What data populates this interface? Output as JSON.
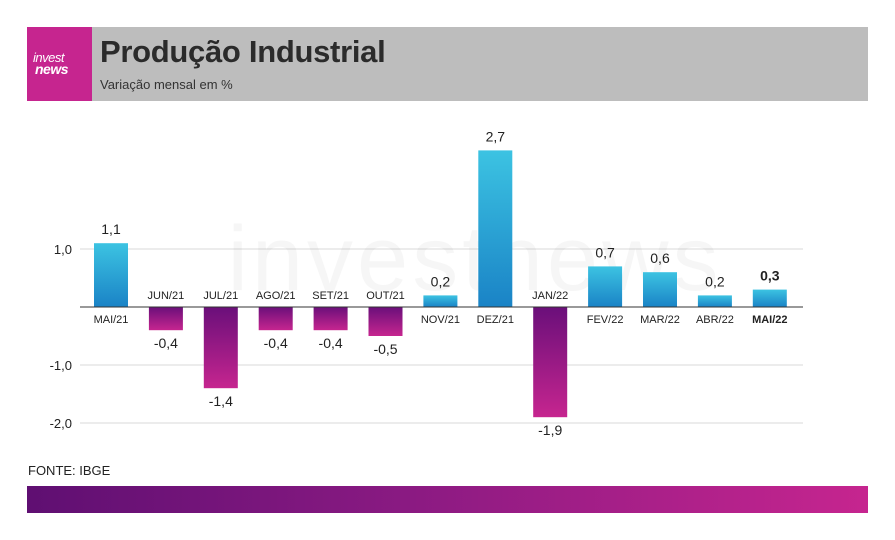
{
  "header": {
    "logo_line1": "invest",
    "logo_line2": "news",
    "title": "Produção Industrial",
    "subtitle": "Variação mensal em %"
  },
  "watermark": "investnews",
  "source": "FONTE: IBGE",
  "colors": {
    "positive_top": "#3cc3e2",
    "positive_bottom": "#1a83c6",
    "negative_top": "#6a0f7a",
    "negative_bottom": "#c6258f",
    "header_bg": "#bdbdbd",
    "brand": "#c6258f"
  },
  "chart_data": {
    "type": "bar",
    "categories": [
      "MAI/21",
      "JUN/21",
      "JUL/21",
      "AGO/21",
      "SET/21",
      "OUT/21",
      "NOV/21",
      "DEZ/21",
      "JAN/22",
      "FEV/22",
      "MAR/22",
      "ABR/22",
      "MAI/22"
    ],
    "values": [
      1.1,
      -0.4,
      -1.4,
      -0.4,
      -0.4,
      -0.5,
      0.2,
      2.7,
      -1.9,
      0.7,
      0.6,
      0.2,
      0.3
    ],
    "value_labels": [
      "1,1",
      "-0,4",
      "-1,4",
      "-0,4",
      "-0,4",
      "-0,5",
      "0,2",
      "2,7",
      "-1,9",
      "0,7",
      "0,6",
      "0,2",
      "0,3"
    ],
    "highlight_index": 12,
    "yticks": [
      1.0,
      -1.0,
      -2.0
    ],
    "ytick_labels": [
      "1,0",
      "-1,0",
      "-2,0"
    ],
    "ylim": [
      -2.0,
      2.7
    ],
    "grid": true
  }
}
